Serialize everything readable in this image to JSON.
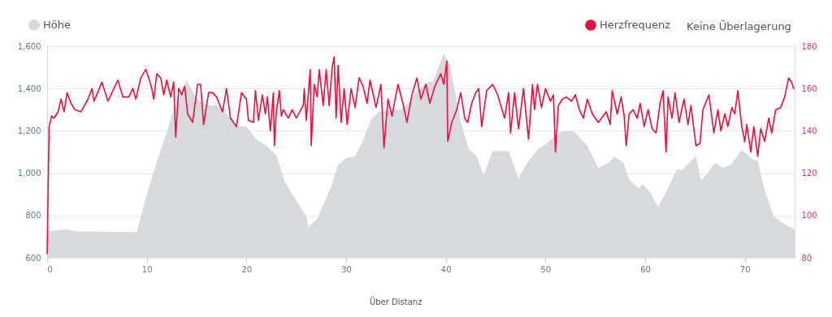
{
  "chart_data": {
    "type": "area",
    "xlim": [
      0,
      75
    ],
    "xticks": [
      0,
      10,
      20,
      30,
      40,
      50,
      60,
      70
    ],
    "ylim": [
      600,
      1600
    ],
    "yticks": [
      600,
      800,
      {
        "value": 1000,
        "label": "1,000"
      },
      {
        "value": 1200,
        "label": "1,200"
      },
      {
        "value": 1400,
        "label": "1,400"
      },
      {
        "value": 1600,
        "label": "1,600"
      }
    ],
    "y2lim": [
      80,
      180
    ],
    "y2ticks": [
      80,
      100,
      120,
      140,
      160,
      180
    ],
    "grid": "y",
    "legend": "top",
    "annotations": [
      "Keine Überlagerung",
      "Über Distanz"
    ],
    "series": [
      {
        "name": "Höhe",
        "color": "#d6dade",
        "x": [
          0,
          2,
          3,
          9,
          10,
          11,
          12,
          13,
          14,
          15,
          16,
          17,
          18,
          19,
          20,
          21,
          22,
          23,
          23.8,
          24.6,
          26,
          26.2,
          27.1,
          28.4,
          29.2,
          30,
          30.9,
          31.7,
          32.5,
          33.3,
          34.4,
          35.5,
          36.3,
          37.1,
          38.2,
          38.7,
          39.8,
          40.4,
          41.5,
          42.3,
          43.1,
          43.8,
          44.7,
          45.2,
          46.3,
          47.3,
          48.2,
          49.3,
          50.1,
          51.5,
          52.3,
          52.9,
          54.2,
          55.3,
          56.4,
          56.9,
          57.8,
          58.4,
          59.4,
          59.7,
          60.5,
          61.3,
          62.1,
          63.2,
          63.7,
          65.1,
          65.6,
          66.2,
          67,
          67.8,
          68.6,
          69.7,
          70.8,
          71.3,
          71.9,
          72.9,
          74.3,
          75
        ],
        "values": [
          725,
          735,
          725,
          722,
          900,
          1050,
          1195,
          1345,
          1440,
          1350,
          1320,
          1320,
          1280,
          1225,
          1220,
          1160,
          1130,
          1085,
          965,
          900,
          795,
          745,
          785,
          925,
          1040,
          1070,
          1080,
          1155,
          1255,
          1290,
          1300,
          1300,
          1335,
          1390,
          1430,
          1430,
          1565,
          1510,
          1245,
          1115,
          1080,
          990,
          1105,
          1105,
          1105,
          975,
          1050,
          1115,
          1140,
          1195,
          1200,
          1195,
          1130,
          1025,
          1050,
          1080,
          1050,
          970,
          925,
          950,
          910,
          840,
          910,
          1020,
          1015,
          1080,
          965,
          995,
          1050,
          1025,
          1040,
          1110,
          1065,
          1060,
          935,
          795,
          750,
          735
        ]
      },
      {
        "name": "Herzfrequenz",
        "type": "line",
        "axis": "y2",
        "color": "#e8103a",
        "x": [
          0,
          0.2,
          0.45,
          0.7,
          1.1,
          1.4,
          1.7,
          2.0,
          2.4,
          2.8,
          3.4,
          4.1,
          4.5,
          4.7,
          5.5,
          6.1,
          7.1,
          7.6,
          8.2,
          8.6,
          8.9,
          9.4,
          9.9,
          10.2,
          10.5,
          10.7,
          11.0,
          11.4,
          11.7,
          12.0,
          12.4,
          12.7,
          12.9,
          13.2,
          13.5,
          13.8,
          14.1,
          14.6,
          15.1,
          15.4,
          15.7,
          16.2,
          16.6,
          17.0,
          17.6,
          18.0,
          18.4,
          19.0,
          19.5,
          20.0,
          20.2,
          20.7,
          20.9,
          21.2,
          21.6,
          21.9,
          22.1,
          22.4,
          22.7,
          22.8,
          23.0,
          23.3,
          23.5,
          23.7,
          24.2,
          24.6,
          25.0,
          25.7,
          25.8,
          26.0,
          26.4,
          26.5,
          26.8,
          27.1,
          27.3,
          27.7,
          28.0,
          28.3,
          28.6,
          28.8,
          29.0,
          29.2,
          29.5,
          29.8,
          30.1,
          30.5,
          30.9,
          31.3,
          31.7,
          32.1,
          32.4,
          33.0,
          33.5,
          33.8,
          34.2,
          34.6,
          35.2,
          35.7,
          36.1,
          36.6,
          37.1,
          37.5,
          38.0,
          38.4,
          38.9,
          39.5,
          39.8,
          40.1,
          40.2,
          40.6,
          41.1,
          41.5,
          41.9,
          42.2,
          42.6,
          43.0,
          43.3,
          43.6,
          44.1,
          44.7,
          45.2,
          45.9,
          46.3,
          46.5,
          46.9,
          47.3,
          47.8,
          48.3,
          48.7,
          48.9,
          49.2,
          49.6,
          50.0,
          50.5,
          50.8,
          51.0,
          51.3,
          51.7,
          52.1,
          52.6,
          53.0,
          53.4,
          53.8,
          54.2,
          54.7,
          55.3,
          56.1,
          56.5,
          56.7,
          57.2,
          57.6,
          57.9,
          58.1,
          58.4,
          58.8,
          59.2,
          59.5,
          59.9,
          60.3,
          60.7,
          61.1,
          61.5,
          61.8,
          62.1,
          62.3,
          62.7,
          63.0,
          63.4,
          63.9,
          64.3,
          64.6,
          65.1,
          65.5,
          65.8,
          66.4,
          66.9,
          67.3,
          67.6,
          68.0,
          68.3,
          68.7,
          69.0,
          69.3,
          69.7,
          70.0,
          70.2,
          70.6,
          70.9,
          71.3,
          71.6,
          72.0,
          72.4,
          72.7,
          73.1,
          73.6,
          74.0,
          74.4,
          74.7,
          74.9
        ],
        "values": [
          82,
          142,
          147,
          146,
          149,
          155,
          149,
          158,
          153,
          150,
          149,
          155,
          160,
          154,
          163,
          154,
          164,
          156,
          156,
          160,
          155,
          165,
          169,
          165,
          160,
          155,
          167,
          165,
          157,
          164,
          156,
          163,
          137,
          160,
          157,
          161,
          148,
          144,
          162,
          162,
          143,
          158,
          158,
          156,
          149,
          160,
          146,
          142,
          158,
          155,
          145,
          144,
          159,
          145,
          157,
          148,
          156,
          140,
          158,
          133,
          149,
          159,
          147,
          150,
          146,
          150,
          146,
          152,
          160,
          145,
          169,
          133,
          162,
          156,
          169,
          152,
          169,
          152,
          170,
          175,
          146,
          171,
          144,
          160,
          143,
          160,
          151,
          165,
          161,
          153,
          164,
          151,
          162,
          132,
          155,
          147,
          162,
          153,
          144,
          157,
          165,
          155,
          162,
          153,
          161,
          167,
          162,
          173,
          135,
          144,
          150,
          158,
          146,
          144,
          153,
          158,
          160,
          142,
          159,
          162,
          157,
          146,
          158,
          139,
          158,
          141,
          160,
          136,
          162,
          150,
          162,
          151,
          160,
          154,
          157,
          130,
          152,
          155,
          156,
          154,
          157,
          150,
          146,
          155,
          148,
          144,
          149,
          143,
          159,
          148,
          156,
          147,
          133,
          148,
          150,
          146,
          153,
          142,
          150,
          141,
          139,
          153,
          159,
          130,
          156,
          146,
          158,
          144,
          155,
          143,
          152,
          133,
          134,
          150,
          157,
          139,
          150,
          140,
          148,
          142,
          151,
          148,
          159,
          142,
          135,
          143,
          130,
          142,
          128,
          141,
          135,
          146,
          139,
          150,
          151,
          156,
          165,
          163,
          160
        ]
      }
    ]
  }
}
